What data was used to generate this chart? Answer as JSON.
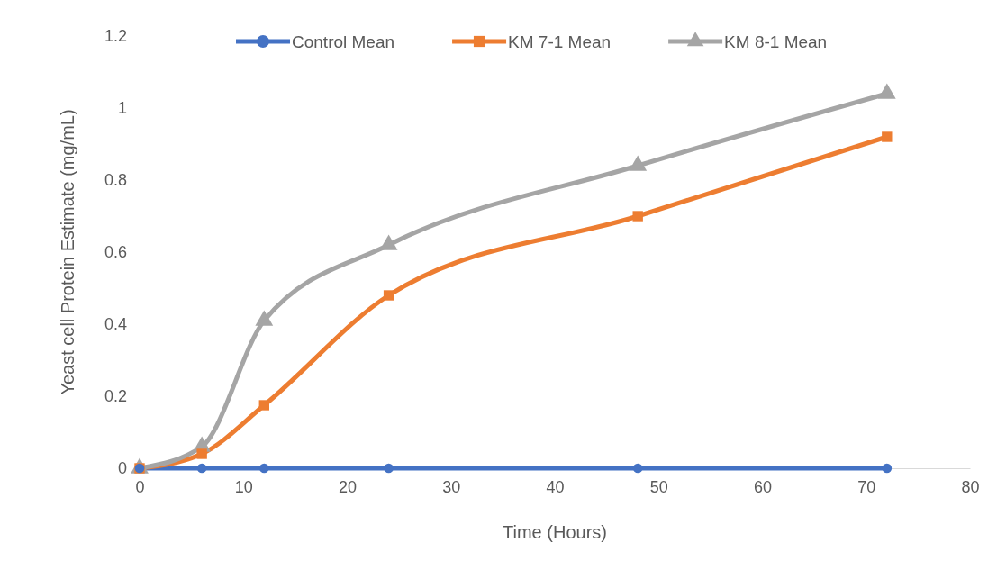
{
  "chart_data": {
    "type": "line",
    "xlabel": "Time (Hours)",
    "ylabel": "Yeast cell Protein Estimate  (mg/mL)",
    "x": [
      0,
      6,
      12,
      24,
      48,
      72
    ],
    "series": [
      {
        "name": "Control Mean",
        "color": "#4472c4",
        "marker": "circle",
        "values": [
          0,
          0,
          0,
          0,
          0,
          0
        ]
      },
      {
        "name": "KM 7-1 Mean",
        "color": "#ed7d31",
        "marker": "square",
        "values": [
          0,
          0.04,
          0.175,
          0.48,
          0.7,
          0.92
        ]
      },
      {
        "name": "KM 8-1 Mean",
        "color": "#a5a5a5",
        "marker": "triangle",
        "values": [
          0,
          0.06,
          0.41,
          0.62,
          0.84,
          1.04
        ]
      }
    ],
    "xlim": [
      0,
      80
    ],
    "xticks": [
      0,
      10,
      20,
      30,
      40,
      50,
      60,
      70,
      80
    ],
    "ylim": [
      0,
      1.2
    ],
    "yticks": [
      0,
      0.2,
      0.4,
      0.6,
      0.8,
      1,
      1.2
    ],
    "grid": false,
    "legend": "top",
    "line_style": "solid"
  }
}
